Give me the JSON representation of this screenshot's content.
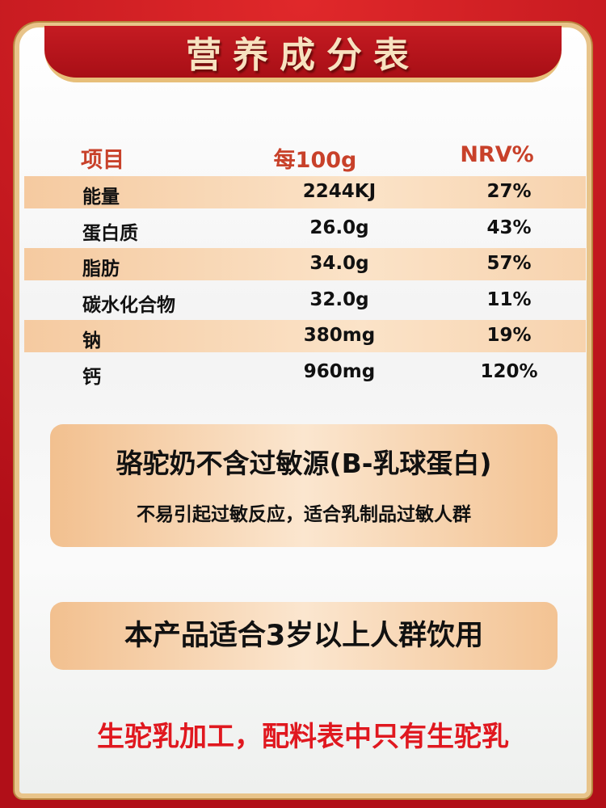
{
  "title": "营养成分表",
  "table": {
    "headers": [
      "项目",
      "每100g",
      "NRV%"
    ],
    "rows": [
      {
        "item": "能量",
        "per100g": "2244KJ",
        "nrv": "27%"
      },
      {
        "item": "蛋白质",
        "per100g": "26.0g",
        "nrv": "43%"
      },
      {
        "item": "脂肪",
        "per100g": "34.0g",
        "nrv": "57%"
      },
      {
        "item": "碳水化合物",
        "per100g": "32.0g",
        "nrv": "11%"
      },
      {
        "item": "钠",
        "per100g": "380mg",
        "nrv": "19%"
      },
      {
        "item": "钙",
        "per100g": "960mg",
        "nrv": "120%"
      }
    ]
  },
  "allergen": {
    "line1": "骆驼奶不含过敏源(B-乳球蛋白)",
    "line2": "不易引起过敏反应，适合乳制品过敏人群"
  },
  "age_note": "本产品适合3岁以上人群饮用",
  "footer": "生驼乳加工，配料表中只有生驼乳",
  "colors": {
    "background": "#c8161d",
    "header_text": "#c8412a",
    "footer_text": "#e0181f",
    "stripe": "#f5caa0"
  }
}
